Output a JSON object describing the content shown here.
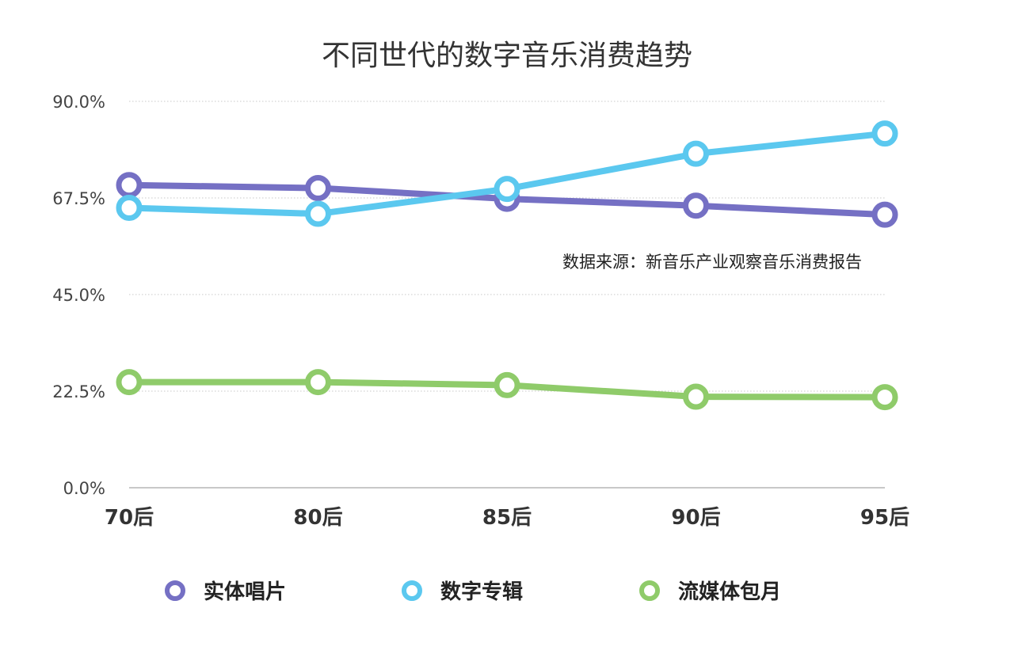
{
  "chart_data": {
    "type": "line",
    "title": "不同世代的数字音乐消费趋势",
    "xlabel": "",
    "ylabel": "",
    "categories": [
      "70后",
      "80后",
      "85后",
      "90后",
      "95后"
    ],
    "yticks": [
      "0.0%",
      "22.5%",
      "45.0%",
      "67.5%",
      "90.0%"
    ],
    "ylim": [
      0,
      90
    ],
    "grid": true,
    "legend_position": "bottom",
    "annotation": "数据来源：新音乐产业观察音乐消费报告",
    "series": [
      {
        "name": "实体唱片",
        "color": "#7570c4",
        "values": [
          70.5,
          69.8,
          67.3,
          65.7,
          63.6
        ]
      },
      {
        "name": "数字专辑",
        "color": "#5bc8ef",
        "values": [
          65.2,
          63.8,
          69.6,
          77.8,
          82.5
        ]
      },
      {
        "name": "流媒体包月",
        "color": "#8fcb6a",
        "values": [
          24.6,
          24.6,
          23.9,
          21.2,
          21.1
        ]
      }
    ]
  }
}
